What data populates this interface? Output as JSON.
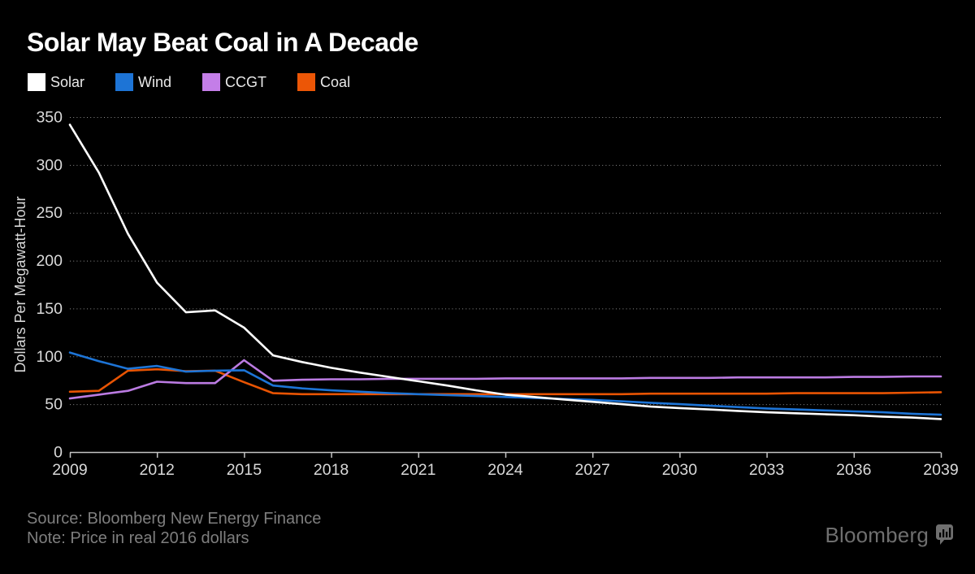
{
  "title": "Solar May Beat Coal in A Decade",
  "legend": {
    "items": [
      {
        "label": "Solar",
        "color": "#ffffff"
      },
      {
        "label": "Wind",
        "color": "#1d74d6"
      },
      {
        "label": "CCGT",
        "color": "#c47ee8"
      },
      {
        "label": "Coal",
        "color": "#ec5606"
      }
    ]
  },
  "chart_data": {
    "type": "line",
    "title": "Solar May Beat Coal in A Decade",
    "ylabel": "Dollars Per Megawatt-Hour",
    "xlabel": "",
    "ylim": [
      0,
      350
    ],
    "yticks": [
      0,
      50,
      100,
      150,
      200,
      250,
      300,
      350
    ],
    "xticks": [
      2009,
      2012,
      2015,
      2018,
      2021,
      2024,
      2027,
      2030,
      2033,
      2036,
      2039
    ],
    "grid": "horizontal-dotted",
    "legend_position": "top-left",
    "x": [
      2009,
      2010,
      2011,
      2012,
      2013,
      2014,
      2015,
      2016,
      2017,
      2018,
      2019,
      2020,
      2021,
      2022,
      2023,
      2024,
      2025,
      2026,
      2027,
      2028,
      2029,
      2030,
      2031,
      2032,
      2033,
      2034,
      2035,
      2036,
      2037,
      2038,
      2039
    ],
    "series": [
      {
        "name": "Solar",
        "color": "#ffffff",
        "values": [
          342,
          292,
          228,
          177,
          146,
          148,
          130,
          101,
          94,
          88,
          83,
          78.5,
          74,
          69.5,
          64.5,
          60,
          57.5,
          55,
          52.5,
          50,
          47.5,
          46,
          44.5,
          43,
          41.5,
          40.5,
          39.5,
          38.5,
          37,
          36,
          34.5
        ]
      },
      {
        "name": "Wind",
        "color": "#1d74d6",
        "values": [
          104,
          95,
          87,
          90,
          84,
          85,
          85.5,
          69.5,
          66.5,
          64.5,
          63,
          61.5,
          60.5,
          59.5,
          58.5,
          57.5,
          56.5,
          55.5,
          54.5,
          53,
          51.5,
          50,
          48.5,
          47,
          45.5,
          44.5,
          43.5,
          42.5,
          41.5,
          40,
          39
        ]
      },
      {
        "name": "CCGT",
        "color": "#bb7be2",
        "values": [
          56,
          60,
          64,
          73.5,
          72,
          72,
          96,
          74.5,
          75.5,
          76,
          76,
          76.5,
          76.5,
          76.5,
          76.5,
          77,
          77,
          77,
          77,
          77,
          77.5,
          77.5,
          77.5,
          78,
          78,
          78,
          78,
          78.5,
          78.5,
          79,
          79
        ]
      },
      {
        "name": "Coal",
        "color": "#e85403",
        "values": [
          63,
          64,
          85,
          86.5,
          84.5,
          85,
          73,
          61.5,
          60.5,
          60.5,
          60.5,
          60.5,
          60.5,
          60.5,
          60.5,
          60.5,
          60.5,
          60.5,
          60.5,
          60.5,
          61,
          61,
          61,
          61,
          61,
          61.5,
          61.5,
          61.5,
          61.5,
          62,
          62.5
        ]
      }
    ]
  },
  "axis_style": {
    "text_color": "#d9d9d9",
    "grid_color": "#8c8c8c",
    "axis_line_color": "#c4c4c4"
  },
  "footer": {
    "source": "Source: Bloomberg New Energy Finance",
    "note": "Note: Price in real 2016 dollars",
    "logo_text": "Bloomberg"
  }
}
